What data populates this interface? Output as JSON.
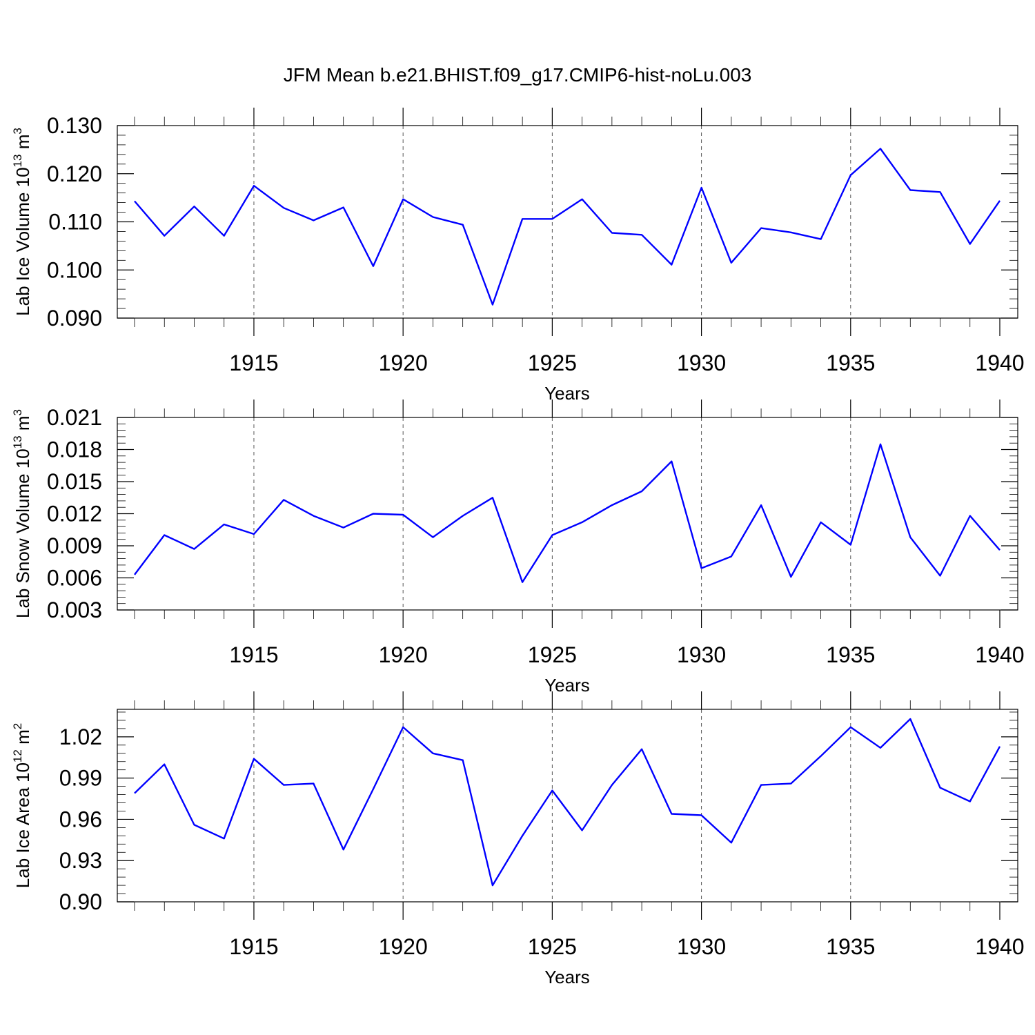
{
  "figure_title": "JFM Mean b.e21.BHIST.f09_g17.CMIP6-hist-noLu.003",
  "colors": {
    "line": "#0000ff",
    "axis": "#000000",
    "grid": "#555555"
  },
  "chart_data": [
    {
      "type": "line",
      "title": "JFM Mean b.e21.BHIST.f09_g17.CMIP6-hist-noLu.003",
      "xlabel": "Years",
      "ylabel": {
        "text": "Lab Ice Volume 10",
        "exponent": "13",
        "unit": " m",
        "unit_exponent": "3"
      },
      "xlim": [
        1911,
        1940
      ],
      "ylim": [
        0.09,
        0.13
      ],
      "xticks": [
        1915,
        1920,
        1925,
        1930,
        1935,
        1940
      ],
      "yticks": [
        0.09,
        0.1,
        0.11,
        0.12,
        0.13
      ],
      "ytick_labels": [
        "0.090",
        "0.100",
        "0.110",
        "0.120",
        "0.130"
      ],
      "grid": "dashed vertical at major x ticks",
      "series": [
        {
          "name": "Lab Ice Volume",
          "x": [
            1911,
            1912,
            1913,
            1914,
            1915,
            1916,
            1917,
            1918,
            1919,
            1920,
            1921,
            1922,
            1923,
            1924,
            1925,
            1926,
            1927,
            1928,
            1929,
            1930,
            1931,
            1932,
            1933,
            1934,
            1935,
            1936,
            1937,
            1938,
            1939,
            1940
          ],
          "values": [
            0.1143,
            0.1071,
            0.1132,
            0.1071,
            0.1175,
            0.1129,
            0.1103,
            0.113,
            0.1008,
            0.1147,
            0.111,
            0.1094,
            0.0928,
            0.1106,
            0.1106,
            0.1147,
            0.1077,
            0.1073,
            0.1011,
            0.1171,
            0.1015,
            0.1087,
            0.1078,
            0.1064,
            0.1197,
            0.1252,
            0.1166,
            0.1162,
            0.1054,
            0.1144
          ]
        }
      ]
    },
    {
      "type": "line",
      "xlabel": "Years",
      "ylabel": {
        "text": "Lab Snow Volume 10",
        "exponent": "13",
        "unit": " m",
        "unit_exponent": "3"
      },
      "xlim": [
        1911,
        1940
      ],
      "ylim": [
        0.003,
        0.021
      ],
      "xticks": [
        1915,
        1920,
        1925,
        1930,
        1935,
        1940
      ],
      "yticks": [
        0.003,
        0.006,
        0.009,
        0.012,
        0.015,
        0.018,
        0.021
      ],
      "ytick_labels": [
        "0.003",
        "0.006",
        "0.009",
        "0.012",
        "0.015",
        "0.018",
        "0.021"
      ],
      "grid": "dashed vertical at major x ticks",
      "series": [
        {
          "name": "Lab Snow Volume",
          "x": [
            1911,
            1912,
            1913,
            1914,
            1915,
            1916,
            1917,
            1918,
            1919,
            1920,
            1921,
            1922,
            1923,
            1924,
            1925,
            1926,
            1927,
            1928,
            1929,
            1930,
            1931,
            1932,
            1933,
            1934,
            1935,
            1936,
            1937,
            1938,
            1939,
            1940
          ],
          "values": [
            0.0063,
            0.01,
            0.0087,
            0.011,
            0.0101,
            0.0133,
            0.0118,
            0.0107,
            0.012,
            0.0119,
            0.0098,
            0.0118,
            0.0135,
            0.0056,
            0.01,
            0.0112,
            0.0128,
            0.0141,
            0.0169,
            0.0069,
            0.008,
            0.0128,
            0.0061,
            0.0112,
            0.0091,
            0.0185,
            0.0098,
            0.0062,
            0.0118,
            0.0086
          ]
        }
      ]
    },
    {
      "type": "line",
      "xlabel": "Years",
      "ylabel": {
        "text": "Lab Ice Area 10",
        "exponent": "12",
        "unit": " m",
        "unit_exponent": "2"
      },
      "xlim": [
        1911,
        1940
      ],
      "ylim": [
        0.9,
        1.04
      ],
      "xticks": [
        1915,
        1920,
        1925,
        1930,
        1935,
        1940
      ],
      "yticks": [
        0.9,
        0.93,
        0.96,
        0.99,
        1.02
      ],
      "ytick_labels": [
        "0.90",
        "0.93",
        "0.96",
        "0.99",
        "1.02"
      ],
      "grid": "dashed vertical at major x ticks",
      "series": [
        {
          "name": "Lab Ice Area",
          "x": [
            1911,
            1912,
            1913,
            1914,
            1915,
            1916,
            1917,
            1918,
            1919,
            1920,
            1921,
            1922,
            1923,
            1924,
            1925,
            1926,
            1927,
            1928,
            1929,
            1930,
            1931,
            1932,
            1933,
            1934,
            1935,
            1936,
            1937,
            1938,
            1939,
            1940
          ],
          "values": [
            0.979,
            1.0,
            0.956,
            0.946,
            1.004,
            0.985,
            0.986,
            0.938,
            0.982,
            1.027,
            1.008,
            1.003,
            0.912,
            0.948,
            0.981,
            0.952,
            0.985,
            1.011,
            0.964,
            0.963,
            0.943,
            0.985,
            0.986,
            1.006,
            1.027,
            1.012,
            1.033,
            0.983,
            0.973,
            1.013
          ]
        }
      ]
    }
  ]
}
